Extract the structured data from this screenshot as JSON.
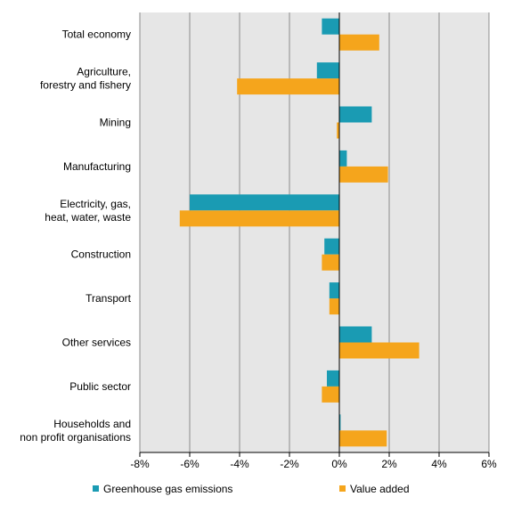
{
  "chart_data": {
    "type": "bar",
    "orientation": "horizontal",
    "title": "",
    "xlabel": "",
    "ylabel": "",
    "xlim": [
      -8,
      6
    ],
    "tick_values": [
      -8,
      -6,
      -4,
      -2,
      0,
      2,
      4,
      6
    ],
    "tick_labels": [
      "-8%",
      "-6%",
      "-4%",
      "-2%",
      "0%",
      "2%",
      "4%",
      "6%"
    ],
    "grid": true,
    "legend_position": "bottom",
    "categories": [
      [
        "Total economy"
      ],
      [
        "Agriculture,",
        "forestry and fishery"
      ],
      [
        "Mining"
      ],
      [
        "Manufacturing"
      ],
      [
        "Electricity, gas,",
        "heat, water, waste"
      ],
      [
        "Construction"
      ],
      [
        "Transport"
      ],
      [
        "Other services"
      ],
      [
        "Public sector"
      ],
      [
        "Households and",
        "non profit organisations"
      ]
    ],
    "series": [
      {
        "name": "Greenhouse gas emissions",
        "color": "#1a9bb3",
        "values": [
          -0.7,
          -0.9,
          1.3,
          0.3,
          -6.0,
          -0.6,
          -0.4,
          1.3,
          -0.5,
          0.05
        ]
      },
      {
        "name": "Value added",
        "color": "#f5a51c",
        "values": [
          1.6,
          -4.1,
          -0.1,
          1.95,
          -6.4,
          -0.7,
          -0.4,
          3.2,
          -0.7,
          1.9
        ]
      }
    ]
  }
}
